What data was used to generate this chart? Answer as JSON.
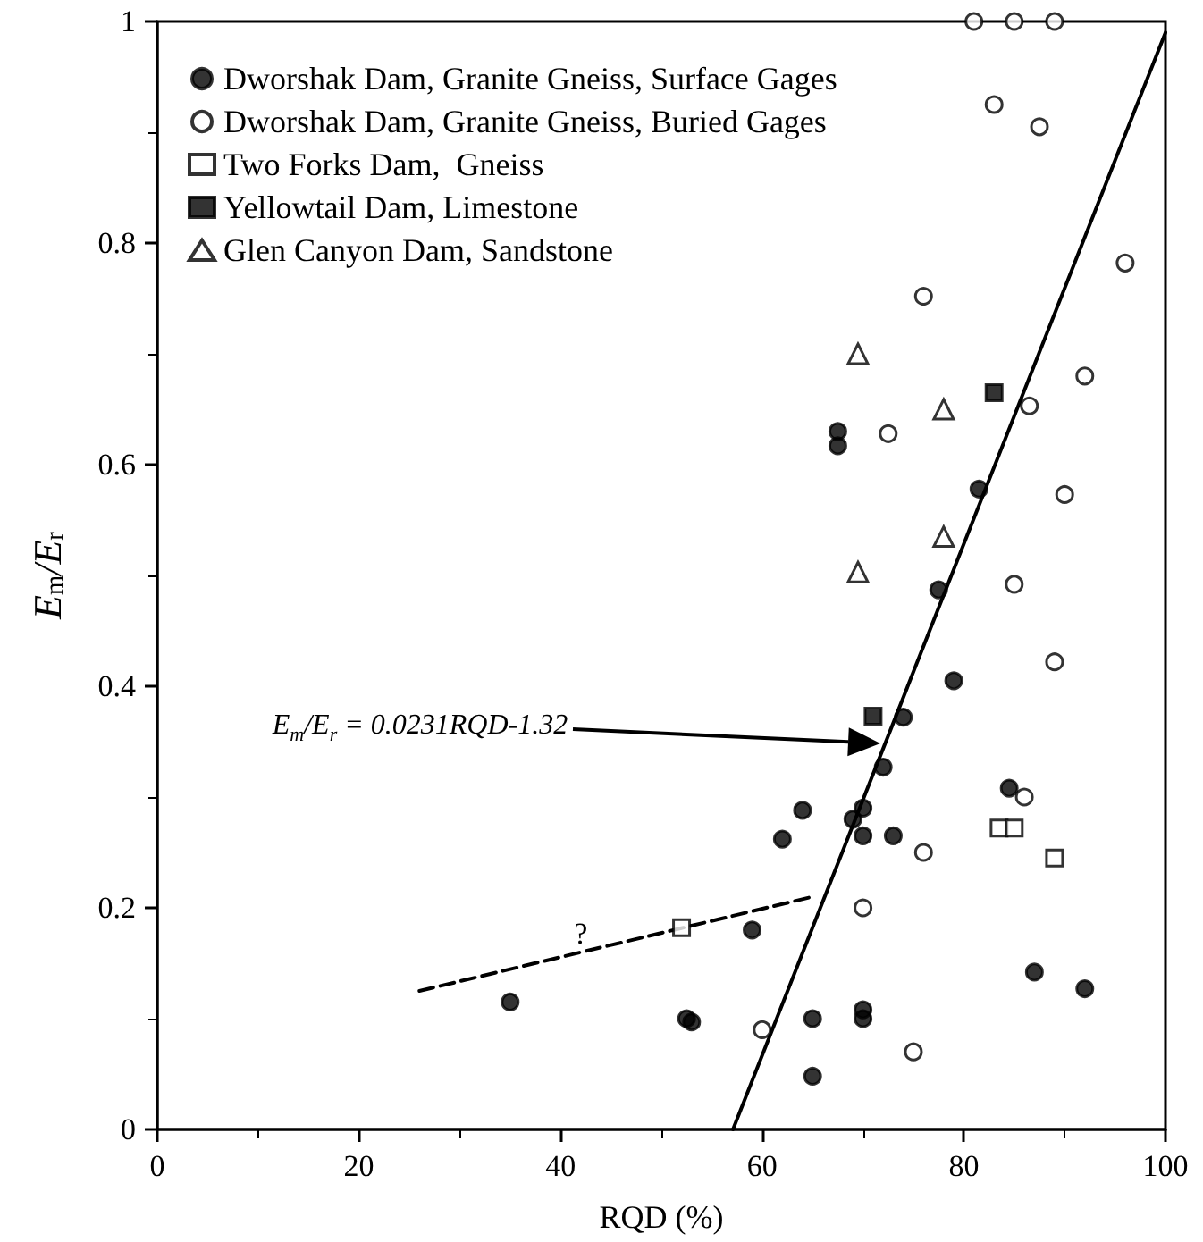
{
  "chart_data": {
    "type": "scatter",
    "xlabel": "RQD (%)",
    "ylabel": "E$_{m}$/E$_{r}$",
    "xlim": [
      0,
      100
    ],
    "ylim": [
      0,
      1
    ],
    "xticks": [
      0,
      20,
      40,
      60,
      80,
      100
    ],
    "yticks": [
      0,
      0.2,
      0.4,
      0.6,
      0.8,
      1
    ],
    "grid": false,
    "legend": "top left",
    "annotations": [
      "E$_{m}$/E$_{r}$ = 0.0231RQD-1.32",
      {
        "text": "?",
        "x": 42,
        "y": 0.165
      }
    ],
    "series": [
      {
        "name": "Dworshak Dam, Granite Gneiss, Surface Gages",
        "marker": "circle",
        "color": "#000000",
        "x": [
          35,
          52.5,
          53,
          59,
          62,
          64,
          65,
          65,
          67.5,
          67.5,
          69,
          70,
          70,
          70,
          70,
          72,
          73,
          74,
          77.5,
          79,
          81.5,
          84.5,
          87,
          92
        ],
        "values": [
          0.115,
          0.1,
          0.097,
          0.18,
          0.262,
          0.288,
          0.1,
          0.048,
          0.63,
          0.617,
          0.28,
          0.29,
          0.265,
          0.108,
          0.1,
          0.327,
          0.265,
          0.372,
          0.487,
          0.405,
          0.578,
          0.308,
          0.142,
          0.127
        ]
      },
      {
        "name": "Dworshak Dam, Granite Gneiss, Buried Gages",
        "marker": "circle",
        "color": "#ffffff",
        "x": [
          81,
          85,
          89,
          83,
          87.5,
          96,
          76,
          92,
          72.5,
          86.5,
          90,
          85,
          89,
          86,
          76,
          70,
          60,
          75
        ],
        "values": [
          1,
          1,
          1,
          0.925,
          0.905,
          0.782,
          0.752,
          0.68,
          0.628,
          0.653,
          0.573,
          0.492,
          0.422,
          0.3,
          0.25,
          0.2,
          0.09,
          0.07
        ]
      },
      {
        "name": "Two Forks Dam,  Gneiss",
        "marker": "square",
        "color": "#ffffff",
        "x": [
          52,
          83.5,
          85,
          89
        ],
        "values": [
          0.182,
          0.272,
          0.272,
          0.245
        ]
      },
      {
        "name": "Yellowtail Dam, Limestone",
        "marker": "square",
        "color": "#000000",
        "x": [
          83,
          71
        ],
        "values": [
          0.665,
          0.373
        ]
      },
      {
        "name": "Glen Canyon Dam, Sandstone",
        "marker": "triangle",
        "color": "#ffffff",
        "x": [
          69.5,
          69.5,
          78,
          78
        ],
        "values": [
          0.7,
          0.503,
          0.65,
          0.535
        ]
      },
      {
        "type": "line",
        "color": "#000000",
        "line_style": "solid",
        "marker": "none",
        "x": [
          57.1,
          100
        ],
        "values": [
          0,
          0.99
        ]
      },
      {
        "type": "line",
        "color": "#000000",
        "line_style": "dashed",
        "marker": "none",
        "x": [
          26,
          65
        ],
        "values": [
          0.125,
          0.21
        ]
      }
    ]
  }
}
